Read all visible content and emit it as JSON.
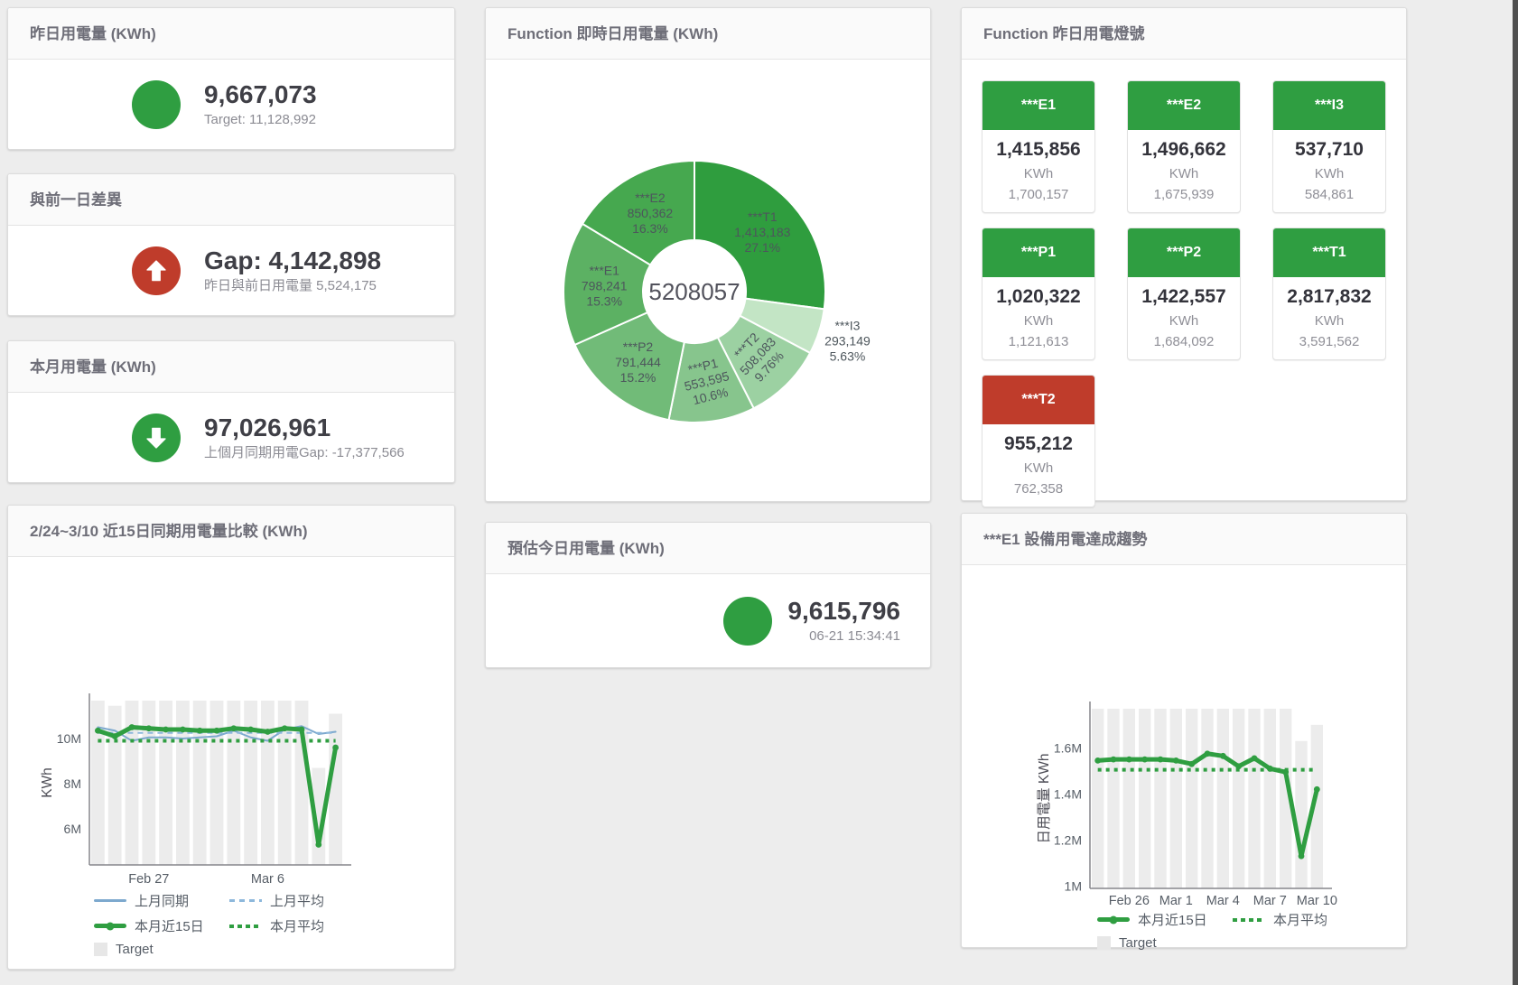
{
  "theme": {
    "green": "#2f9e41",
    "red": "#bf3c2b",
    "blue": "#7da9ce",
    "blue_light": "#8db8dc",
    "bar_gray": "#ececec",
    "legend_box": "#e7e7e7"
  },
  "cards": {
    "yesterday": {
      "title": "昨日用電量 (KWh)",
      "value": "9,667,073",
      "sub": "Target: 11,128,992"
    },
    "diff": {
      "title": "與前一日差異",
      "value": "Gap: 4,142,898",
      "sub": "昨日與前日用電量 5,524,175"
    },
    "month": {
      "title": "本月用電量 (KWh)",
      "value": "97,026,961",
      "sub": "上個月同期用電Gap: -17,377,566"
    },
    "estimate": {
      "title": "預估今日用電量 (KWh)",
      "value": "9,615,796",
      "sub": "06-21 15:34:41"
    },
    "donut": {
      "title": "Function 即時日用電量 (KWh)"
    },
    "lights": {
      "title": "Function 昨日用電燈號",
      "tiles": [
        {
          "label": "***E1",
          "value": "1,415,856",
          "unit": "KWh",
          "target": "1,700,157",
          "status": "green"
        },
        {
          "label": "***E2",
          "value": "1,496,662",
          "unit": "KWh",
          "target": "1,675,939",
          "status": "green"
        },
        {
          "label": "***I3",
          "value": "537,710",
          "unit": "KWh",
          "target": "584,861",
          "status": "green"
        },
        {
          "label": "***P1",
          "value": "1,020,322",
          "unit": "KWh",
          "target": "1,121,613",
          "status": "green"
        },
        {
          "label": "***P2",
          "value": "1,422,557",
          "unit": "KWh",
          "target": "1,684,092",
          "status": "green"
        },
        {
          "label": "***T1",
          "value": "2,817,832",
          "unit": "KWh",
          "target": "3,591,562",
          "status": "green"
        },
        {
          "label": "***T2",
          "value": "955,212",
          "unit": "KWh",
          "target": "762,358",
          "status": "red"
        }
      ]
    },
    "compare": {
      "title": "2/24~3/10 近15日同期用電量比較 (KWh)"
    },
    "trend": {
      "title": "***E1 設備用電達成趨勢"
    }
  },
  "chart_data": [
    {
      "id": "donut",
      "type": "pie",
      "title": "Function 即時日用電量 (KWh)",
      "center_label": "5208057",
      "total": 5208057,
      "slices": [
        {
          "name": "***T1",
          "value": 1413183,
          "display": "1,413,183",
          "pct": "27.1%",
          "color": "#2f9d3e",
          "label_pos": "inside",
          "rotate": 0
        },
        {
          "name": "***I3",
          "value": 293149,
          "display": "293,149",
          "pct": "5.63%",
          "color": "#c3e5c5",
          "label_pos": "outside",
          "rotate": 0
        },
        {
          "name": "***T2",
          "value": 508083,
          "display": "508,083",
          "pct": "9.76%",
          "color": "#9cd1a2",
          "label_pos": "inside",
          "rotate": -47
        },
        {
          "name": "***P1",
          "value": 553595,
          "display": "553,595",
          "pct": "10.6%",
          "color": "#87c58d",
          "label_pos": "inside",
          "rotate": -14
        },
        {
          "name": "***P2",
          "value": 791444,
          "display": "791,444",
          "pct": "15.2%",
          "color": "#71bb78",
          "label_pos": "inside",
          "rotate": 0
        },
        {
          "name": "***E1",
          "value": 798241,
          "display": "798,241",
          "pct": "15.3%",
          "color": "#5cb163",
          "label_pos": "inside",
          "rotate": 0
        },
        {
          "name": "***E2",
          "value": 850362,
          "display": "850,362",
          "pct": "16.3%",
          "color": "#46a84f",
          "label_pos": "inside",
          "rotate": 0
        }
      ]
    },
    {
      "id": "compare15",
      "type": "line+bar",
      "title": "2/24~3/10 近15日同期用電量比較 (KWh)",
      "ylabel": "KWh",
      "ylim": [
        4.4,
        11.68
      ],
      "unit": "M",
      "yticks": [
        {
          "v": 6,
          "label": "6M"
        },
        {
          "v": 8,
          "label": "8M"
        },
        {
          "v": 10,
          "label": "10M"
        }
      ],
      "n": 15,
      "xticks": [
        {
          "i": 3,
          "label": "Feb 27"
        },
        {
          "i": 10,
          "label": "Mar 6"
        }
      ],
      "bars": {
        "name": "Target",
        "color": "#ececec",
        "values": [
          11.68,
          11.45,
          11.68,
          11.68,
          11.68,
          11.68,
          11.68,
          11.68,
          11.68,
          11.68,
          11.68,
          11.68,
          11.68,
          8.7,
          11.1
        ]
      },
      "lines": [
        {
          "name": "上月同期",
          "color": "#7da9ce",
          "width": 2,
          "values": [
            10.5,
            10.35,
            9.9,
            10.05,
            10.05,
            10.0,
            10.05,
            10.1,
            10.35,
            10.05,
            9.9,
            10.4,
            10.55,
            10.2,
            10.3
          ]
        },
        {
          "name": "上月平均",
          "color": "#8db8dc",
          "width": 2,
          "dash": "6,5",
          "const": 10.25
        },
        {
          "name": "本月近15日",
          "color": "#2f9e41",
          "width": 5,
          "markers": true,
          "values": [
            10.35,
            10.1,
            10.5,
            10.45,
            10.4,
            10.4,
            10.35,
            10.35,
            10.45,
            10.4,
            10.3,
            10.45,
            10.4,
            5.3,
            9.6
          ]
        },
        {
          "name": "本月平均",
          "color": "#2f9e41",
          "width": 4,
          "dash": "4,5",
          "const": 9.9
        }
      ],
      "legend_rows": [
        [
          {
            "type": "line",
            "color": "#7da9ce",
            "label": "上月同期"
          },
          {
            "type": "dash",
            "color": "#8db8dc",
            "label": "上月平均"
          }
        ],
        [
          {
            "type": "thick",
            "color": "#2f9e41",
            "label": "本月近15日"
          },
          {
            "type": "dots",
            "color": "#2f9e41",
            "label": "本月平均"
          }
        ],
        [
          {
            "type": "box",
            "color": "#e7e7e7",
            "label": "Target"
          }
        ]
      ]
    },
    {
      "id": "e1trend",
      "type": "line+bar",
      "title": "***E1 設備用電達成趨勢",
      "ylabel": "日用電量 KWh",
      "ylim": [
        0.99,
        1.77
      ],
      "unit": "M",
      "yticks": [
        {
          "v": 1,
          "label": "1M"
        },
        {
          "v": 1.2,
          "label": "1.2M"
        },
        {
          "v": 1.4,
          "label": "1.4M"
        },
        {
          "v": 1.6,
          "label": "1.6M"
        }
      ],
      "n": 15,
      "xticks": [
        {
          "i": 2,
          "label": "Feb 26"
        },
        {
          "i": 5,
          "label": "Mar 1"
        },
        {
          "i": 8,
          "label": "Mar 4"
        },
        {
          "i": 11,
          "label": "Mar 7"
        },
        {
          "i": 14,
          "label": "Mar 10"
        }
      ],
      "bars": {
        "name": "Target",
        "color": "#ececec",
        "values": [
          1.77,
          1.77,
          1.77,
          1.77,
          1.77,
          1.77,
          1.77,
          1.77,
          1.77,
          1.77,
          1.77,
          1.77,
          1.77,
          1.63,
          1.7
        ]
      },
      "lines": [
        {
          "name": "本月近15日",
          "color": "#2f9e41",
          "width": 5,
          "markers": true,
          "values": [
            1.545,
            1.55,
            1.55,
            1.55,
            1.55,
            1.545,
            1.53,
            1.575,
            1.565,
            1.52,
            1.555,
            1.51,
            1.495,
            1.13,
            1.42
          ]
        },
        {
          "name": "本月平均",
          "color": "#2f9e41",
          "width": 4,
          "dash": "4,5",
          "const": 1.505
        }
      ],
      "legend_rows": [
        [
          {
            "type": "thick",
            "color": "#2f9e41",
            "label": "本月近15日"
          },
          {
            "type": "dots",
            "color": "#2f9e41",
            "label": "本月平均"
          }
        ],
        [
          {
            "type": "box",
            "color": "#e7e7e7",
            "label": "Target"
          }
        ]
      ]
    }
  ]
}
